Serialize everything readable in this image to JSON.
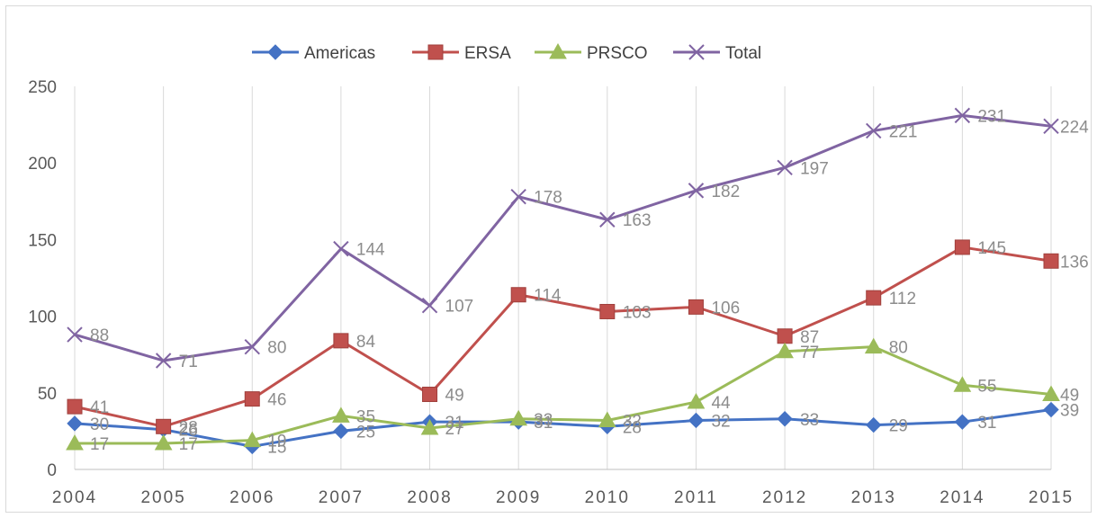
{
  "chart_data": {
    "type": "line",
    "title": "",
    "xlabel": "",
    "ylabel": "",
    "categories": [
      "2004",
      "2005",
      "2006",
      "2007",
      "2008",
      "2009",
      "2010",
      "2011",
      "2012",
      "2013",
      "2014",
      "2015"
    ],
    "ylim": [
      0,
      250
    ],
    "yticks": [
      0,
      50,
      100,
      150,
      200,
      250
    ],
    "grid": "vertical",
    "legend": "top-center",
    "series": [
      {
        "name": "Americas",
        "color": "#4472c4",
        "marker": "diamond",
        "values": [
          30,
          26,
          15,
          25,
          31,
          31,
          28,
          32,
          33,
          29,
          31,
          39
        ]
      },
      {
        "name": "ERSA",
        "color": "#c0504d",
        "marker": "square",
        "values": [
          41,
          28,
          46,
          84,
          49,
          114,
          103,
          106,
          87,
          112,
          145,
          136
        ]
      },
      {
        "name": "PRSCO",
        "color": "#9bbb59",
        "marker": "triangle",
        "values": [
          17,
          17,
          19,
          35,
          27,
          33,
          32,
          44,
          77,
          80,
          55,
          49
        ]
      },
      {
        "name": "Total",
        "color": "#8064a2",
        "marker": "x",
        "values": [
          88,
          71,
          80,
          144,
          107,
          178,
          163,
          182,
          197,
          221,
          231,
          224
        ]
      }
    ]
  }
}
